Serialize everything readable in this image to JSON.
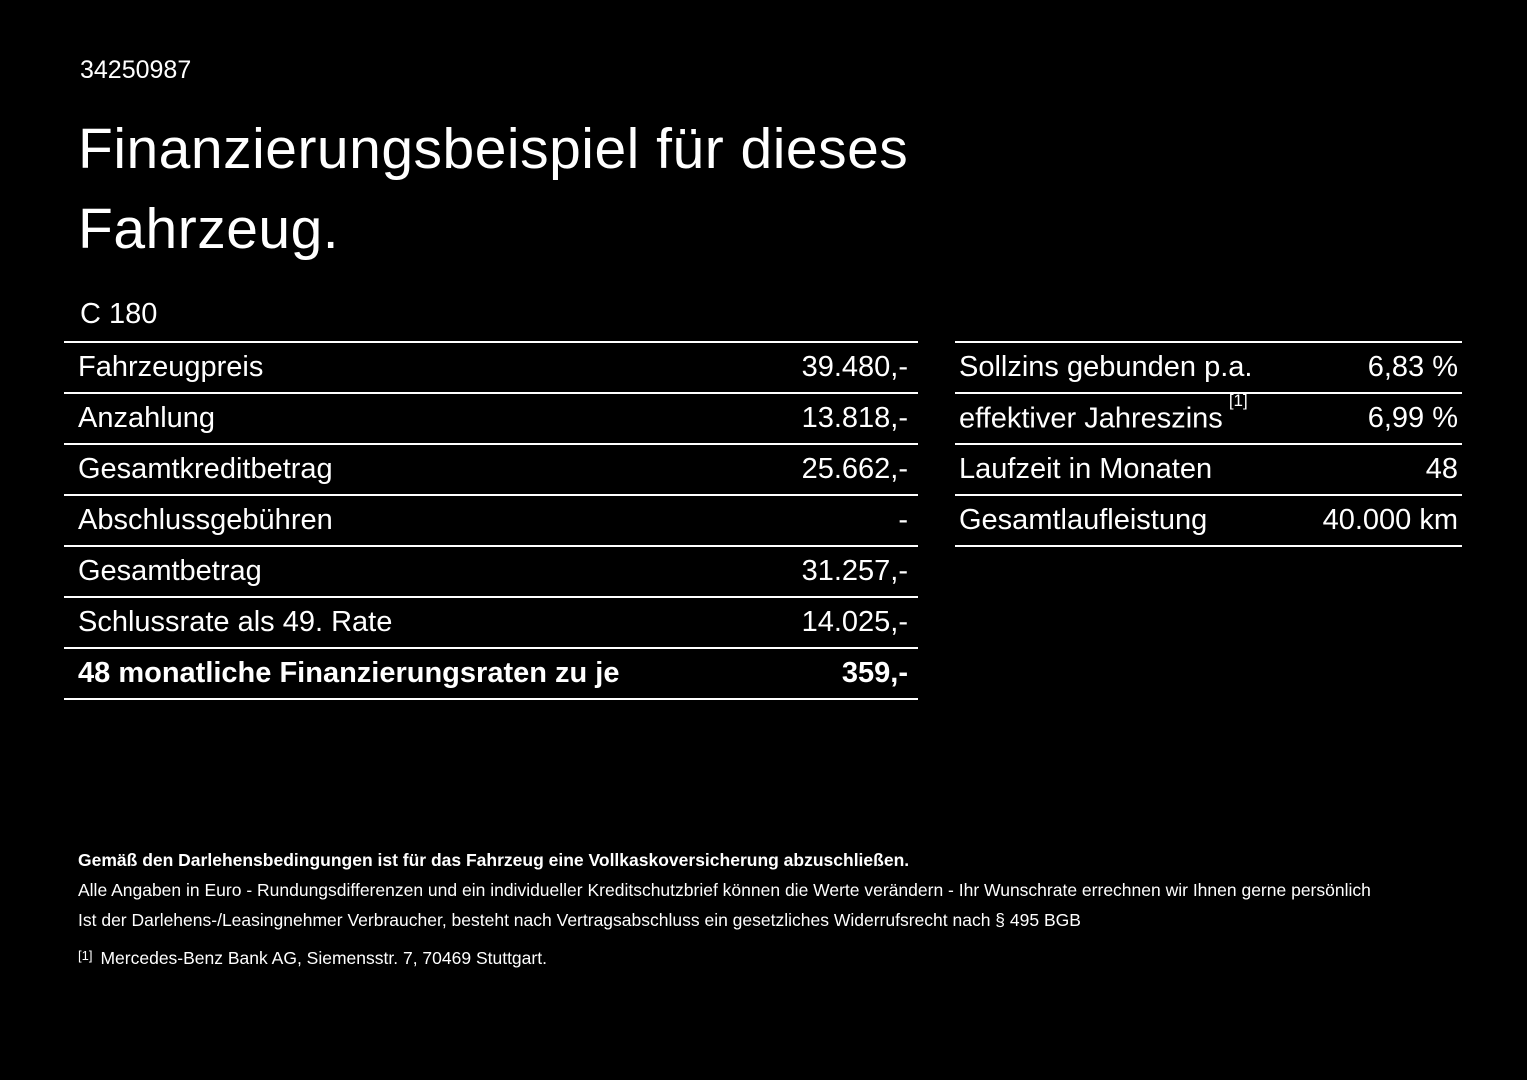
{
  "colors": {
    "background": "#000000",
    "text": "#ffffff",
    "divider": "#ffffff"
  },
  "page": {
    "id": "34250987",
    "title_line1": "Finanzierungsbeispiel für dieses",
    "title_line2": "Fahrzeug.",
    "model": "C 180"
  },
  "finance_table": {
    "rows": [
      {
        "label": "Fahrzeugpreis",
        "value": "39.480,-"
      },
      {
        "label": "Anzahlung",
        "value": "13.818,-"
      },
      {
        "label": "Gesamtkreditbetrag",
        "value": "25.662,-"
      },
      {
        "label": "Abschlussgebühren",
        "value": "-"
      },
      {
        "label": "Gesamtbetrag",
        "value": "31.257,-"
      },
      {
        "label": "Schlussrate als 49. Rate",
        "value": "14.025,-"
      },
      {
        "label": "48 monatliche Finanzierungsraten zu je",
        "value": "359,-"
      }
    ]
  },
  "conditions_table": {
    "rows": [
      {
        "label": "Sollzins gebunden p.a.",
        "value": "6,83 %"
      },
      {
        "label": "effektiver Jahreszins",
        "sup": "[1]",
        "value": "6,99 %"
      },
      {
        "label": "Laufzeit in Monaten",
        "value": "48"
      },
      {
        "label": "Gesamtlaufleistung",
        "value": "40.000 km"
      }
    ]
  },
  "footer": {
    "bold_note": "Gemäß den Darlehensbedingungen ist für das Fahrzeug eine Vollkaskoversicherung abzuschließen.",
    "note1": "Alle Angaben in Euro - Rundungsdifferenzen und ein individueller Kreditschutzbrief können die Werte verändern - Ihr Wunschrate errechnen wir Ihnen gerne persönlich",
    "note2": "Ist der Darlehens-/Leasingnehmer Verbraucher, besteht nach Vertragsabschluss ein gesetzliches Widerrufsrecht nach § 495 BGB",
    "footnote_marker": "[1]",
    "footnote_text": "Mercedes-Benz Bank AG, Siemensstr. 7, 70469 Stuttgart."
  }
}
